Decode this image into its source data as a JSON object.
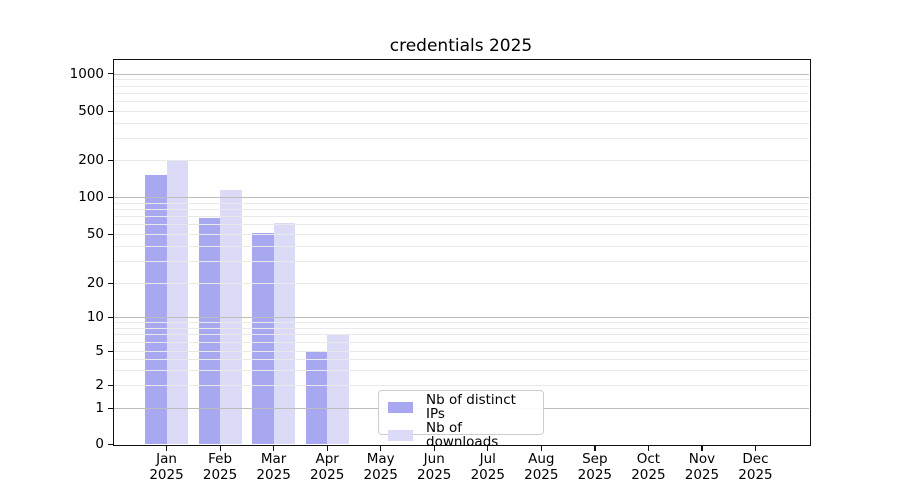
{
  "chart_data": {
    "type": "bar",
    "title": "credentials 2025",
    "xlabel": "",
    "ylabel": "",
    "y_scale": "symlog",
    "y_ticks": [
      0,
      1,
      2,
      5,
      10,
      20,
      50,
      100,
      200,
      500,
      1000
    ],
    "ylim": [
      0,
      1300
    ],
    "grid": "on",
    "categories": [
      "Jan",
      "Feb",
      "Mar",
      "Apr",
      "May",
      "Jun",
      "Jul",
      "Aug",
      "Sep",
      "Oct",
      "Nov",
      "Dec"
    ],
    "x_tick_year": "2025",
    "series": [
      {
        "name": "Nb of distinct IPs",
        "color": "#a8a8f0",
        "values": [
          150,
          68,
          51,
          5,
          0,
          0,
          0,
          0,
          0,
          0,
          0,
          0
        ]
      },
      {
        "name": "Nb of downloads",
        "color": "#dbdbf8",
        "values": [
          200,
          115,
          62,
          7,
          0,
          0,
          0,
          0,
          0,
          0,
          0,
          0
        ]
      }
    ],
    "legend_position": "inside-bottom-center",
    "colors": {
      "major_grid": "#bdbdbd",
      "minor_grid": "#e9e9e9",
      "axis": "#111111",
      "text": "#000000",
      "background": "#ffffff"
    }
  }
}
